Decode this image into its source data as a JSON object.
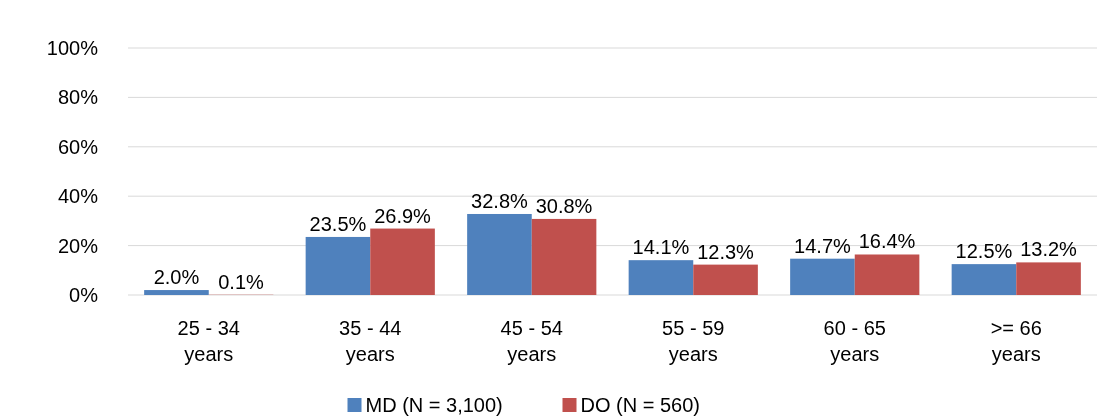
{
  "chart_data": {
    "type": "bar",
    "categories": [
      "25 - 34 years",
      "35 - 44 years",
      "45 - 54 years",
      "55 - 59 years",
      "60 - 65 years",
      ">= 66 years"
    ],
    "series": [
      {
        "name": "MD (N = 3,100)",
        "color": "#4f81bd",
        "values": [
          2.0,
          23.5,
          32.8,
          14.1,
          14.7,
          12.5
        ],
        "value_labels": [
          "2.0%",
          "23.5%",
          "32.8%",
          "14.1%",
          "14.7%",
          "12.5%"
        ]
      },
      {
        "name": "DO (N = 560)",
        "color": "#c0504d",
        "values": [
          0.1,
          26.9,
          30.8,
          12.3,
          16.4,
          13.2
        ],
        "value_labels": [
          "0.1%",
          "26.9%",
          "30.8%",
          "12.3%",
          "16.4%",
          "13.2%"
        ]
      }
    ],
    "ylim": [
      0,
      100
    ],
    "yticks": [
      {
        "value": 0,
        "label": "0%"
      },
      {
        "value": 20,
        "label": "20%"
      },
      {
        "value": 40,
        "label": "40%"
      },
      {
        "value": 60,
        "label": "60%"
      },
      {
        "value": 80,
        "label": "80%"
      },
      {
        "value": 100,
        "label": "100%"
      }
    ],
    "grid": "y",
    "legend": "bottom"
  }
}
